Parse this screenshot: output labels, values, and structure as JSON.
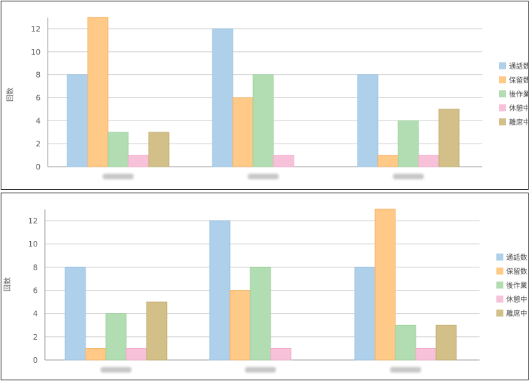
{
  "colors": {
    "series": [
      "#AED0EA",
      "#FFC987",
      "#B2DDB2",
      "#F7C1D9",
      "#D3BF88"
    ],
    "series_stroke": [
      "#94BEE0",
      "#F5B062",
      "#98CF98",
      "#F0A9C8",
      "#C0A86A"
    ]
  },
  "chart_data": [
    {
      "type": "bar",
      "categories": [
        "",
        "",
        ""
      ],
      "series": [
        {
          "name": "通話数",
          "values": [
            8,
            12,
            8
          ]
        },
        {
          "name": "保留数",
          "values": [
            13,
            6,
            1
          ]
        },
        {
          "name": "後作業",
          "values": [
            3,
            8,
            4
          ]
        },
        {
          "name": "休憩中",
          "values": [
            1,
            1,
            1
          ]
        },
        {
          "name": "離席中",
          "values": [
            3,
            0,
            5
          ]
        }
      ],
      "ylabel": "回数",
      "yticks": [
        0,
        2,
        4,
        6,
        8,
        10,
        12
      ],
      "ylim": [
        0,
        13
      ],
      "grid": true,
      "legend": "right"
    },
    {
      "type": "bar",
      "categories": [
        "",
        "",
        ""
      ],
      "series": [
        {
          "name": "通話数",
          "values": [
            8,
            12,
            8
          ]
        },
        {
          "name": "保留数",
          "values": [
            1,
            6,
            13
          ]
        },
        {
          "name": "後作業",
          "values": [
            4,
            8,
            3
          ]
        },
        {
          "name": "休憩中",
          "values": [
            1,
            1,
            1
          ]
        },
        {
          "name": "離席中",
          "values": [
            5,
            0,
            3
          ]
        }
      ],
      "ylabel": "回数",
      "yticks": [
        0,
        2,
        4,
        6,
        8,
        10,
        12
      ],
      "ylim": [
        0,
        13
      ],
      "grid": true,
      "legend": "right"
    }
  ]
}
